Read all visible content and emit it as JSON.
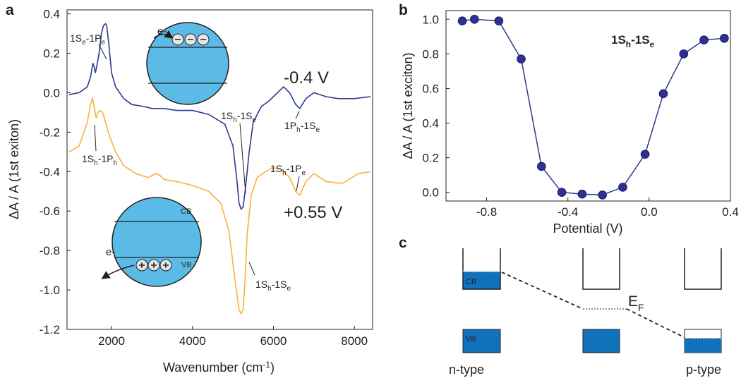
{
  "colors": {
    "series_top": "#2b3990",
    "series_bottom": "#fbb03b",
    "marker_fill": "#2e3192",
    "dot_fill": "#2e3192",
    "inset_fill": "#5bbbe6",
    "band_fill": "#0f72ba",
    "axis": "#231f20"
  },
  "chart_data": [
    {
      "panel": "a",
      "type": "line",
      "xlabel": "Wavenumber (cm",
      "xlabel_sup": "-1",
      "xlabel_close": ")",
      "ylabel": "ΔA / A (1st exiton)",
      "xlim": [
        900,
        8450
      ],
      "ylim": [
        -1.2,
        0.42
      ],
      "x_ticks": [
        2000,
        4000,
        6000,
        8000
      ],
      "y_ticks": [
        0.4,
        0.2,
        0.0,
        -0.2,
        -0.4,
        -0.6,
        -0.8,
        -1.0,
        -1.2
      ],
      "x_tick_labels": [
        "2000",
        "4000",
        "6000",
        "8000"
      ],
      "y_tick_labels": [
        "0.4",
        "0.2",
        "0.0",
        "-0.2",
        "-0.4",
        "-0.6",
        "-0.8",
        "-1.0",
        "-1.2"
      ],
      "series": [
        {
          "name": "-0.4 V",
          "label": "-0.4 V",
          "x": [
            950,
            1200,
            1400,
            1480,
            1540,
            1570,
            1600,
            1640,
            1700,
            1750,
            1800,
            1850,
            1880,
            1930,
            2000,
            2100,
            2300,
            2500,
            2800,
            3000,
            3300,
            3600,
            4000,
            4400,
            4800,
            5000,
            5100,
            5150,
            5200,
            5250,
            5300,
            5400,
            5500,
            5700,
            5900,
            6100,
            6250,
            6400,
            6550,
            6650,
            6800,
            7000,
            7300,
            7600,
            8000,
            8400
          ],
          "y": [
            -0.01,
            0.0,
            0.03,
            0.08,
            0.15,
            0.13,
            0.1,
            0.14,
            0.21,
            0.3,
            0.34,
            0.35,
            0.34,
            0.25,
            0.1,
            0.03,
            -0.03,
            -0.06,
            -0.07,
            -0.08,
            -0.08,
            -0.09,
            -0.09,
            -0.11,
            -0.16,
            -0.27,
            -0.45,
            -0.56,
            -0.59,
            -0.58,
            -0.5,
            -0.3,
            -0.15,
            -0.07,
            -0.04,
            0.0,
            0.03,
            0.0,
            -0.06,
            -0.08,
            -0.03,
            0.0,
            -0.02,
            -0.03,
            -0.03,
            -0.02
          ]
        },
        {
          "name": "+0.55 V",
          "label": "+0.55 V",
          "x": [
            950,
            1200,
            1400,
            1480,
            1530,
            1570,
            1620,
            1660,
            1720,
            1780,
            1850,
            1950,
            2100,
            2300,
            2600,
            2900,
            3100,
            3200,
            3300,
            3600,
            4000,
            4400,
            4700,
            4900,
            5050,
            5150,
            5200,
            5250,
            5300,
            5350,
            5450,
            5600,
            5800,
            6000,
            6200,
            6400,
            6550,
            6650,
            6800,
            7000,
            7300,
            7700,
            8100,
            8400
          ],
          "y": [
            -0.3,
            -0.27,
            -0.15,
            -0.06,
            -0.03,
            -0.07,
            -0.13,
            -0.1,
            -0.09,
            -0.1,
            -0.15,
            -0.22,
            -0.3,
            -0.37,
            -0.41,
            -0.43,
            -0.41,
            -0.42,
            -0.44,
            -0.45,
            -0.47,
            -0.5,
            -0.56,
            -0.7,
            -0.95,
            -1.1,
            -1.12,
            -1.1,
            -0.95,
            -0.72,
            -0.52,
            -0.43,
            -0.4,
            -0.38,
            -0.39,
            -0.43,
            -0.5,
            -0.52,
            -0.45,
            -0.41,
            -0.45,
            -0.46,
            -0.41,
            -0.4
          ]
        }
      ],
      "annotations": {
        "peak_1se_1pe": {
          "main": "1S",
          "sub1": "e",
          "mid": "-1P",
          "sub2": "e"
        },
        "peak_1sh_1ph": {
          "main": "1S",
          "sub1": "h",
          "mid": "-1P",
          "sub2": "h"
        },
        "peak_1sh_1se_top": {
          "main": "1S",
          "sub1": "h",
          "mid": "-1S",
          "sub2": "e"
        },
        "peak_1ph_1se": {
          "main": "1P",
          "sub1": "h",
          "mid": "-1S",
          "sub2": "e"
        },
        "peak_1sh_1pe": {
          "main": "1S",
          "sub1": "h",
          "mid": "-1P",
          "sub2": "e"
        },
        "peak_1sh_1se_bottom": {
          "main": "1S",
          "sub1": "h",
          "mid": "-1S",
          "sub2": "e"
        }
      },
      "inset_top": {
        "electron_label": "e-",
        "carrier_glyph": "⊖"
      },
      "inset_bottom": {
        "cb_label": "CB",
        "vb_label": "VB",
        "electron_label": "e-",
        "carrier_glyph": "⊕"
      }
    },
    {
      "panel": "b",
      "type": "scatter",
      "xlabel": "Potential (V)",
      "ylabel": "ΔA / A (1st exciton)",
      "xlim": [
        -1.0,
        0.4
      ],
      "ylim": [
        -0.05,
        1.05
      ],
      "x_ticks": [
        -0.8,
        -0.4,
        0.0,
        0.4
      ],
      "y_ticks": [
        0.0,
        0.2,
        0.4,
        0.6,
        0.8,
        1.0
      ],
      "x_tick_labels": [
        "-0.8",
        "-0.4",
        "0.0",
        "0.4"
      ],
      "y_tick_labels": [
        "0.0",
        "0.2",
        "0.4",
        "0.6",
        "0.8",
        "1.0"
      ],
      "title": {
        "main": "1S",
        "sub1": "h",
        "mid": "-1S",
        "sub2": "e"
      },
      "series": [
        {
          "name": "1Sh-1Se",
          "x": [
            -0.92,
            -0.86,
            -0.74,
            -0.63,
            -0.53,
            -0.43,
            -0.33,
            -0.23,
            -0.13,
            -0.02,
            0.07,
            0.17,
            0.27,
            0.37
          ],
          "y": [
            0.99,
            1.0,
            0.99,
            0.77,
            0.15,
            0.0,
            -0.01,
            -0.015,
            0.03,
            0.22,
            0.57,
            0.8,
            0.88,
            0.89
          ]
        }
      ]
    }
  ],
  "panel_c": {
    "cb_label": "CB",
    "vb_label": "VB",
    "fermi_label": "E",
    "fermi_sub": "F",
    "left_label": "n-type",
    "right_label": "p-type"
  },
  "panel_labels": {
    "a": "a",
    "b": "b",
    "c": "c"
  }
}
